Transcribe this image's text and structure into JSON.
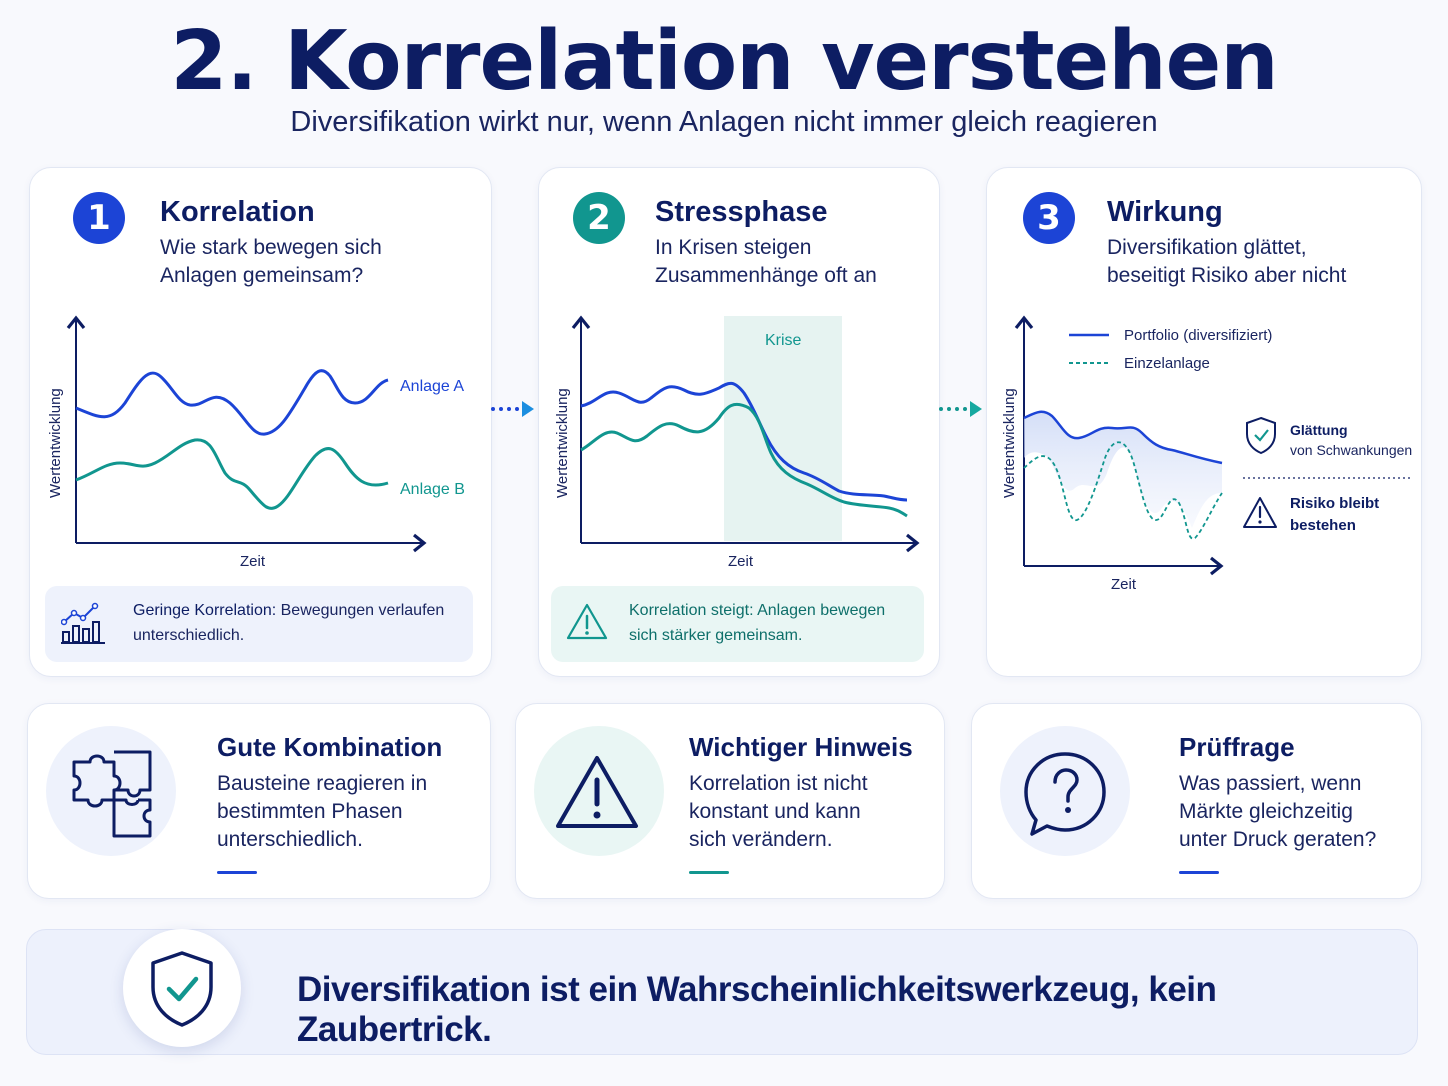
{
  "header": {
    "title": "2. Korrelation verstehen",
    "subtitle": "Diversifikation wirkt nur, wenn Anlagen nicht immer gleich reagieren"
  },
  "colors": {
    "blue": "#1c44d6",
    "teal": "#11968f",
    "navy": "#0d1d63"
  },
  "steps": [
    {
      "number": "1",
      "title": "Korrelation",
      "desc_line1": "Wie stark bewegen sich",
      "desc_line2": "Anlagen gemeinsam?",
      "chart": {
        "ylabel": "Wertentwicklung",
        "xlabel": "Zeit",
        "series_a": "Anlage A",
        "series_b": "Anlage B"
      },
      "note_bold": "Geringe Korrelation:",
      "note_rest": " Bewegungen verlaufen unterschiedlich.",
      "note_icon": "chart-growth-icon"
    },
    {
      "number": "2",
      "title": "Stressphase",
      "desc_line1": "In Krisen steigen",
      "desc_line2": "Zusammenhänge oft an",
      "chart": {
        "ylabel": "Wertentwicklung",
        "xlabel": "Zeit",
        "crisis": "Krise"
      },
      "note_text": "Korrelation steigt: Anlagen bewegen sich stärker gemeinsam.",
      "note_icon": "warning-icon"
    },
    {
      "number": "3",
      "title": "Wirkung",
      "desc_line1": "Diversifikation glättet,",
      "desc_line2": "beseitigt Risiko aber nicht",
      "chart": {
        "ylabel": "Wertentwicklung",
        "xlabel": "Zeit",
        "legend_portfolio": "Portfolio (diversifiziert)",
        "legend_single": "Einzelanlage",
        "smooth_title": "Glättung",
        "smooth_sub": "von Schwankungen",
        "risk_line1": "Risiko bleibt",
        "risk_line2": "bestehen"
      }
    }
  ],
  "bottom_cards": [
    {
      "title": "Gute Kombination",
      "l1": "Bausteine reagieren in",
      "l2": "bestimmten Phasen",
      "l3": "unterschiedlich.",
      "icon": "puzzle-icon"
    },
    {
      "title": "Wichtiger Hinweis",
      "l1": "Korrelation ist nicht",
      "l2": "konstant und kann",
      "l3": "sich verändern.",
      "icon": "warning-icon"
    },
    {
      "title": "Prüffrage",
      "l1": "Was passiert, wenn",
      "l2": "Märkte gleichzeitig",
      "l3": "unter Druck geraten?",
      "icon": "question-bubble-icon"
    }
  ],
  "banner": {
    "text": "Diversifikation ist ein Wahrscheinlichkeitswerkzeug, kein Zaubertrick.",
    "icon": "shield-check-icon"
  }
}
